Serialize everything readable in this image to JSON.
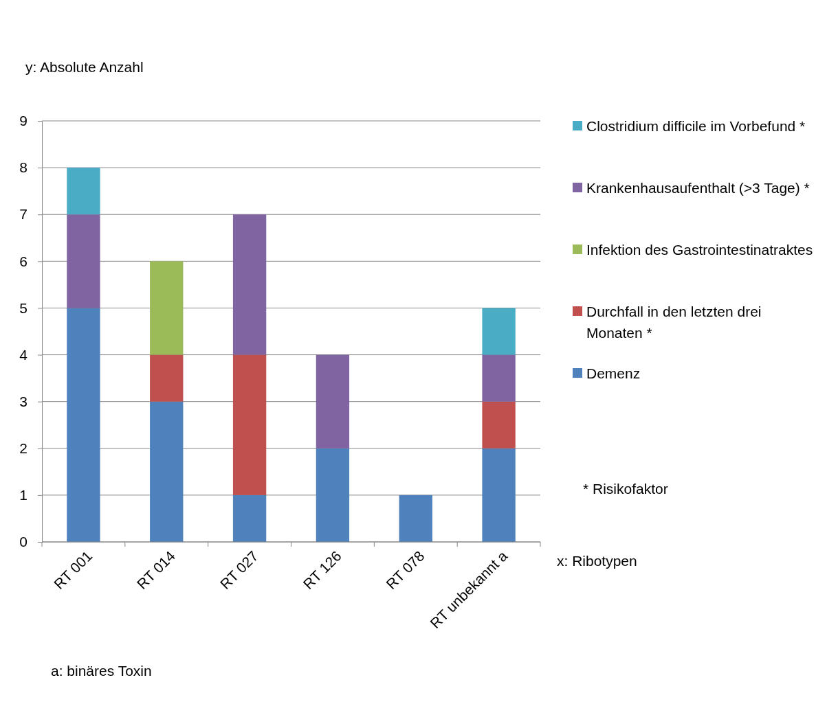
{
  "chart_data": {
    "type": "bar",
    "stacked": true,
    "ylabel": "y: Absolute Anzahl",
    "xlabel": "x: Ribotypen",
    "categories": [
      "RT 001",
      "RT 014",
      "RT 027",
      "RT 126",
      "RT 078",
      "RT unbekannt a"
    ],
    "series": [
      {
        "name": "Demenz",
        "color": "#4f81bd",
        "values": [
          5,
          3,
          1,
          2,
          1,
          2
        ]
      },
      {
        "name": "Durchfall in den letzten drei Monaten *",
        "color": "#c0504d",
        "values": [
          0,
          1,
          3,
          0,
          0,
          1
        ]
      },
      {
        "name": "Infektion des Gastrointestinatraktes",
        "color": "#9bbb59",
        "values": [
          0,
          2,
          0,
          0,
          0,
          0
        ]
      },
      {
        "name": "Krankenhausaufenthalt (>3 Tage) *",
        "color": "#8064a2",
        "values": [
          2,
          0,
          3,
          2,
          0,
          1
        ]
      },
      {
        "name": "Clostridium difficile im Vorbefund *",
        "color": "#4bacc6",
        "values": [
          1,
          0,
          0,
          0,
          0,
          1
        ]
      }
    ],
    "ylim": [
      0,
      9
    ],
    "yticks": [
      0,
      1,
      2,
      3,
      4,
      5,
      6,
      7,
      8,
      9
    ],
    "grid": "y",
    "legend": "right",
    "annotations": [
      "* Risikofaktor",
      "a: binäres Toxin"
    ]
  }
}
